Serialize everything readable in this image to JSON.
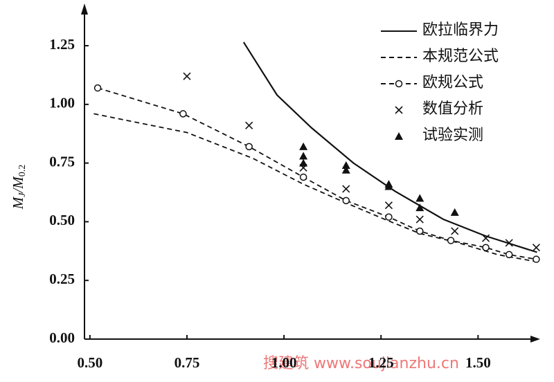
{
  "chart_data": {
    "type": "line",
    "y_label": [
      "M",
      "J",
      "/M",
      "0.2"
    ],
    "watermark": "搜建筑 www.soujianzhu.cn",
    "xlim": [
      0.486,
      1.66
    ],
    "ylim": [
      0,
      1.43
    ],
    "xticks": [
      {
        "value": 0.5,
        "label": "0.50"
      },
      {
        "value": 0.75,
        "label": "0.75"
      },
      {
        "value": 1,
        "label": "1.00"
      },
      {
        "value": 1.25,
        "label": "1.25"
      },
      {
        "value": 1.5,
        "label": "1.50"
      }
    ],
    "yticks": [
      {
        "value": 0,
        "label": "0.00"
      },
      {
        "value": 0.25,
        "label": "0.25"
      },
      {
        "value": 0.5,
        "label": "0.50"
      },
      {
        "value": 0.75,
        "label": "0.75"
      },
      {
        "value": 1,
        "label": "1.00"
      },
      {
        "value": 1.25,
        "label": "1.25"
      }
    ],
    "legend": "upper right",
    "series": [
      {
        "name": "欧拉临界力",
        "color": "#111",
        "style": "solid",
        "marker": "none",
        "x": [
          0.896,
          0.982,
          1.071,
          1.179,
          1.286,
          1.411,
          1.518,
          1.652
        ],
        "values": [
          1.265,
          1.04,
          0.9,
          0.75,
          0.63,
          0.51,
          0.44,
          0.37
        ]
      },
      {
        "name": "本规范公式",
        "color": "#111",
        "style": "dashed",
        "marker": "none",
        "x": [
          0.51,
          0.75,
          0.92,
          1.05,
          1.16,
          1.26,
          1.35,
          1.45,
          1.55,
          1.65
        ],
        "values": [
          0.96,
          0.88,
          0.77,
          0.66,
          0.58,
          0.51,
          0.45,
          0.41,
          0.36,
          0.33
        ]
      },
      {
        "name": "欧规公式",
        "color": "#111",
        "style": "dashed",
        "marker": "circle",
        "x": [
          0.52,
          0.74,
          0.91,
          1.05,
          1.16,
          1.27,
          1.35,
          1.43,
          1.52,
          1.58,
          1.65
        ],
        "values": [
          1.07,
          0.96,
          0.82,
          0.69,
          0.59,
          0.52,
          0.46,
          0.42,
          0.39,
          0.36,
          0.34
        ]
      },
      {
        "name": "数值分析",
        "color": "#111",
        "style": "none",
        "marker": "x",
        "x": [
          0.75,
          0.91,
          1.05,
          1.16,
          1.27,
          1.35,
          1.44,
          1.52,
          1.58,
          1.65
        ],
        "values": [
          1.12,
          0.91,
          0.73,
          0.64,
          0.57,
          0.51,
          0.46,
          0.43,
          0.41,
          0.39
        ]
      },
      {
        "name": "试验实测",
        "color": "#111",
        "style": "none",
        "marker": "triangle",
        "x": [
          1.05,
          1.05,
          1.05,
          1.16,
          1.16,
          1.27,
          1.27,
          1.35,
          1.35,
          1.44
        ],
        "values": [
          0.82,
          0.78,
          0.75,
          0.74,
          0.72,
          0.66,
          0.65,
          0.6,
          0.56,
          0.54
        ]
      }
    ]
  }
}
